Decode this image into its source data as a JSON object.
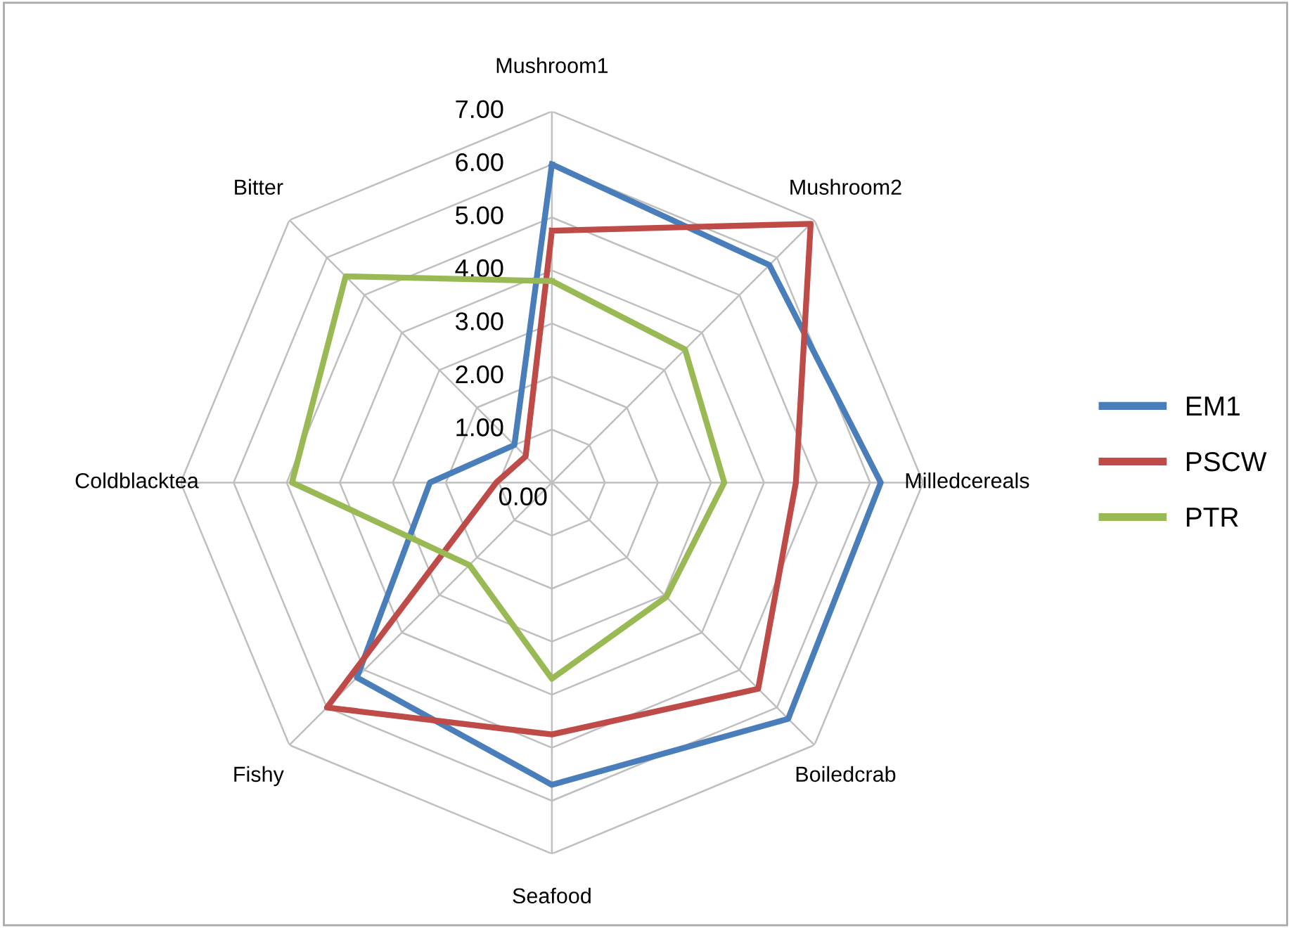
{
  "chart_data": {
    "type": "radar",
    "categories": [
      "Mushroom1",
      "Mushroom2",
      "Milledcereals",
      "Boiledcrab",
      "Seafood",
      "Fishy",
      "Coldblacktea",
      "Bitter"
    ],
    "series": [
      {
        "name": "EM1",
        "color": "#4a7ebb",
        "values": [
          6.0,
          5.8,
          6.2,
          6.3,
          5.7,
          5.2,
          2.3,
          1.0
        ]
      },
      {
        "name": "PSCW",
        "color": "#be4b48",
        "values": [
          4.75,
          6.9,
          4.6,
          5.5,
          4.75,
          6.0,
          1.05,
          0.7
        ]
      },
      {
        "name": "PTR",
        "color": "#98b954",
        "values": [
          3.8,
          3.55,
          3.25,
          3.05,
          3.7,
          2.2,
          4.9,
          5.5
        ]
      }
    ],
    "ylim": [
      0,
      7
    ],
    "yticks": [
      {
        "value": 0,
        "label": "0.00"
      },
      {
        "value": 1,
        "label": "1.00"
      },
      {
        "value": 2,
        "label": "2.00"
      },
      {
        "value": 3,
        "label": "3.00"
      },
      {
        "value": 4,
        "label": "4.00"
      },
      {
        "value": 5,
        "label": "5.00"
      },
      {
        "value": 6,
        "label": "6.00"
      },
      {
        "value": 7,
        "label": "7.00"
      }
    ],
    "grid": true,
    "legend": "right",
    "marker": "none",
    "line_style": "solid"
  }
}
